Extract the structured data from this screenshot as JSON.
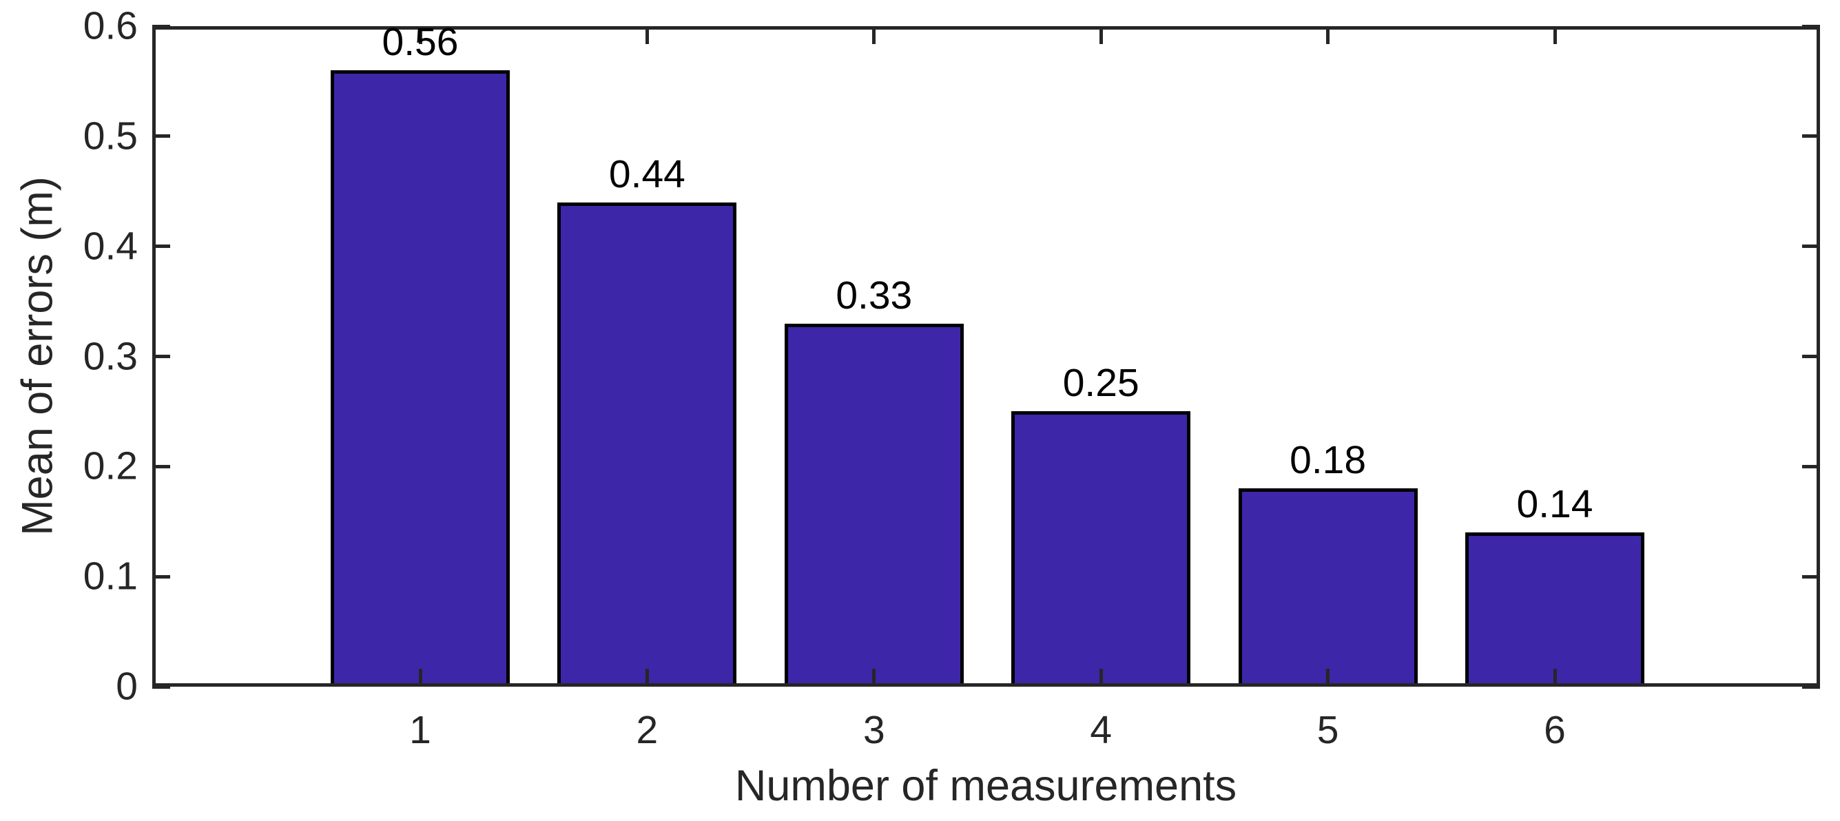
{
  "figure": {
    "background": "#ffffff"
  },
  "chart_data": {
    "type": "bar",
    "categories": [
      "1",
      "2",
      "3",
      "4",
      "5",
      "6"
    ],
    "values": [
      0.56,
      0.44,
      0.33,
      0.25,
      0.18,
      0.14
    ],
    "bar_labels": [
      "0.56",
      "0.44",
      "0.33",
      "0.25",
      "0.18",
      "0.14"
    ],
    "title": "",
    "xlabel": "Number of measurements",
    "ylabel": "Mean of errors (m)",
    "yticks": [
      0,
      0.1,
      0.2,
      0.3,
      0.4,
      0.5,
      0.6
    ],
    "ytick_labels": [
      "0",
      "0.1",
      "0.2",
      "0.3",
      "0.4",
      "0.5",
      "0.6"
    ],
    "ylim": [
      0,
      0.6
    ],
    "grid": false,
    "legend": null,
    "colors": {
      "bar_fill": "#3E26A8",
      "bar_edge": "#000000",
      "axis": "#262626",
      "value_label": "#000000"
    }
  }
}
